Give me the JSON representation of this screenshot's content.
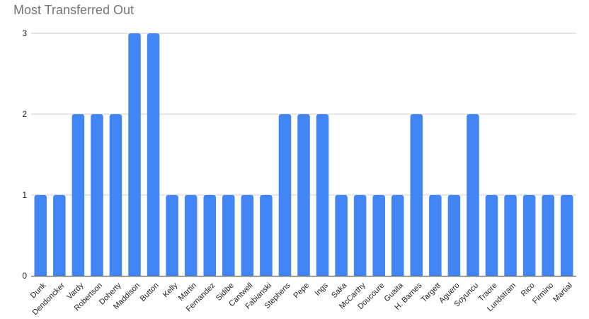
{
  "chart_data": {
    "type": "bar",
    "title": "Most Transferred Out",
    "categories": [
      "Dunk",
      "Dendoncker",
      "Vardy",
      "Robertson",
      "Doherty",
      "Maddison",
      "Button",
      "Kelly",
      "Martin",
      "Fernandez",
      "Sidibe",
      "Cantwell",
      "Fabianski",
      "Stephens",
      "Pepe",
      "Ings",
      "Saka",
      "McCarthy",
      "Doucoure",
      "Guaita",
      "H. Barnes",
      "Targett",
      "Aguero",
      "Soyuncu",
      "Traore",
      "Lundstram",
      "Rico",
      "Firmino",
      "Martial"
    ],
    "values": [
      1,
      1,
      2,
      2,
      2,
      3,
      3,
      1,
      1,
      1,
      1,
      1,
      1,
      2,
      2,
      2,
      1,
      1,
      1,
      1,
      2,
      1,
      1,
      2,
      1,
      1,
      1,
      1,
      1
    ],
    "xlabel": "",
    "ylabel": "",
    "ylim": [
      0,
      3
    ],
    "yticks": [
      "0",
      "1",
      "2",
      "3"
    ],
    "grid": true,
    "colors": {
      "bar": "#4285f4",
      "grid": "#cccccc",
      "axis": "#333333"
    }
  }
}
